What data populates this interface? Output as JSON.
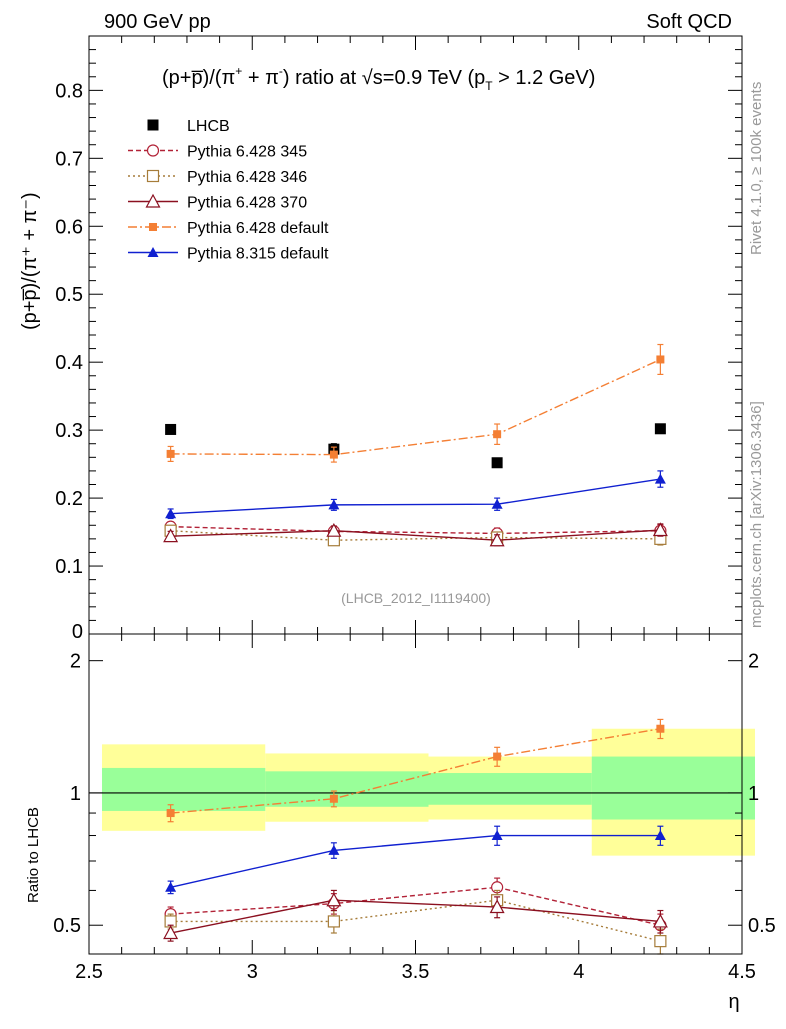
{
  "header": {
    "left": "900 GeV pp",
    "right": "Soft QCD"
  },
  "side": {
    "rivet": "Rivet 4.1.0, ≥ 100k events",
    "mcplots": "mcplots.cern.ch [arXiv:1306.3436]"
  },
  "chart_data": [
    {
      "type": "line",
      "title": "(p+p̅)/(π⁺ + π⁻) ratio at √s=0.9 TeV (pT > 1.2 GeV)",
      "title_parts": {
        "a": "(p+p̅)/(π",
        "b": " + π",
        "c": ") ratio at √s=0.9 TeV (p",
        "d": "T",
        "e": " > 1.2 GeV)"
      },
      "ylabel": "(p+p̅)/(π⁺ + π⁻)",
      "xlabel": "",
      "annotation": "(LHCB_2012_I1119400)",
      "xlim": [
        2.5,
        4.5
      ],
      "ylim": [
        0,
        0.88
      ],
      "yticks": [
        0.1,
        0.2,
        0.3,
        0.4,
        0.5,
        0.6,
        0.7,
        0.8
      ],
      "ytick_labels": [
        "0.1",
        "0.2",
        "0.3",
        "0.4",
        "0.5",
        "0.6",
        "0.7",
        "0.8"
      ],
      "ytick_bottom_label": "0",
      "x": [
        2.75,
        3.25,
        3.75,
        4.25
      ],
      "series": [
        {
          "name": "LHCB",
          "id": "lhcb",
          "values": [
            0.301,
            0.272,
            0.252,
            0.302
          ],
          "errors": [
            0,
            0.008,
            0,
            0
          ]
        },
        {
          "name": "Pythia 6.428 345",
          "id": "p345",
          "values": [
            0.158,
            0.151,
            0.148,
            0.152
          ],
          "errors": [
            0.007,
            0.007,
            0.008,
            0.009
          ]
        },
        {
          "name": "Pythia 6.428 346",
          "id": "p346",
          "values": [
            0.152,
            0.138,
            0.142,
            0.14
          ],
          "errors": [
            0.007,
            0.007,
            0.008,
            0.009
          ]
        },
        {
          "name": "Pythia 6.428 370",
          "id": "p370",
          "values": [
            0.144,
            0.152,
            0.138,
            0.153
          ],
          "errors": [
            0.007,
            0.007,
            0.008,
            0.009
          ]
        },
        {
          "name": "Pythia 6.428 default",
          "id": "pdef",
          "values": [
            0.265,
            0.264,
            0.294,
            0.404
          ],
          "errors": [
            0.011,
            0.011,
            0.015,
            0.022
          ]
        },
        {
          "name": "Pythia 8.315 default",
          "id": "p8",
          "values": [
            0.177,
            0.19,
            0.191,
            0.228
          ],
          "errors": [
            0.007,
            0.008,
            0.009,
            0.012
          ]
        }
      ]
    },
    {
      "type": "line",
      "title": "",
      "ylabel": "Ratio to LHCB",
      "xlabel": "η",
      "xlim": [
        2.5,
        4.5
      ],
      "ylim": [
        0.43,
        2.3
      ],
      "yscale": "log",
      "yticks_major": [
        0.5,
        1,
        2
      ],
      "ytick_labels": [
        "0.5",
        "1",
        "2"
      ],
      "yticks_minor": [
        0.6,
        0.7,
        0.8,
        0.9
      ],
      "xticks": [
        2.5,
        3,
        3.5,
        4,
        4.5
      ],
      "xtick_labels": [
        "2.5",
        "3",
        "3.5",
        "4",
        "4.5"
      ],
      "bands": [
        {
          "x": [
            2.5,
            3.0
          ],
          "inner": [
            0.91,
            1.14
          ],
          "outer": [
            0.82,
            1.29
          ]
        },
        {
          "x": [
            3.0,
            3.5
          ],
          "inner": [
            0.93,
            1.12
          ],
          "outer": [
            0.86,
            1.23
          ]
        },
        {
          "x": [
            3.5,
            4.0
          ],
          "inner": [
            0.94,
            1.11
          ],
          "outer": [
            0.87,
            1.21
          ]
        },
        {
          "x": [
            4.0,
            4.5
          ],
          "inner": [
            0.87,
            1.21
          ],
          "outer": [
            0.72,
            1.4
          ]
        }
      ],
      "x": [
        2.75,
        3.25,
        3.75,
        4.25
      ],
      "series": [
        {
          "name": "Pythia 6.428 345",
          "id": "p345",
          "values": [
            0.53,
            0.56,
            0.61,
            0.5
          ],
          "errors": [
            0.02,
            0.03,
            0.03,
            0.03
          ]
        },
        {
          "name": "Pythia 6.428 346",
          "id": "p346",
          "values": [
            0.51,
            0.51,
            0.57,
            0.46
          ],
          "errors": [
            0.02,
            0.03,
            0.03,
            0.03
          ]
        },
        {
          "name": "Pythia 6.428 370",
          "id": "p370",
          "values": [
            0.48,
            0.57,
            0.55,
            0.51
          ],
          "errors": [
            0.02,
            0.03,
            0.03,
            0.03
          ]
        },
        {
          "name": "Pythia 6.428 default",
          "id": "pdef",
          "values": [
            0.9,
            0.97,
            1.21,
            1.4
          ],
          "errors": [
            0.04,
            0.04,
            0.06,
            0.07
          ]
        },
        {
          "name": "Pythia 8.315 default",
          "id": "p8",
          "values": [
            0.61,
            0.74,
            0.8,
            0.8
          ],
          "errors": [
            0.02,
            0.03,
            0.04,
            0.04
          ]
        }
      ]
    }
  ],
  "styles": {
    "lhcb": {
      "color": "#000000"
    },
    "p345": {
      "color": "#b22237",
      "dash": "5 3",
      "marker": "circle-open"
    },
    "p346": {
      "color": "#a67c3a",
      "dash": "2 3",
      "marker": "square-open"
    },
    "p370": {
      "color": "#8b1020",
      "dash": "",
      "marker": "triangle-open"
    },
    "pdef": {
      "color": "#f47f34",
      "dash": "9 3 2 3",
      "marker": "square"
    },
    "p8": {
      "color": "#1020d0",
      "dash": "",
      "marker": "triangle"
    },
    "band_inner": "#99ff99",
    "band_outer": "#ffff99"
  }
}
